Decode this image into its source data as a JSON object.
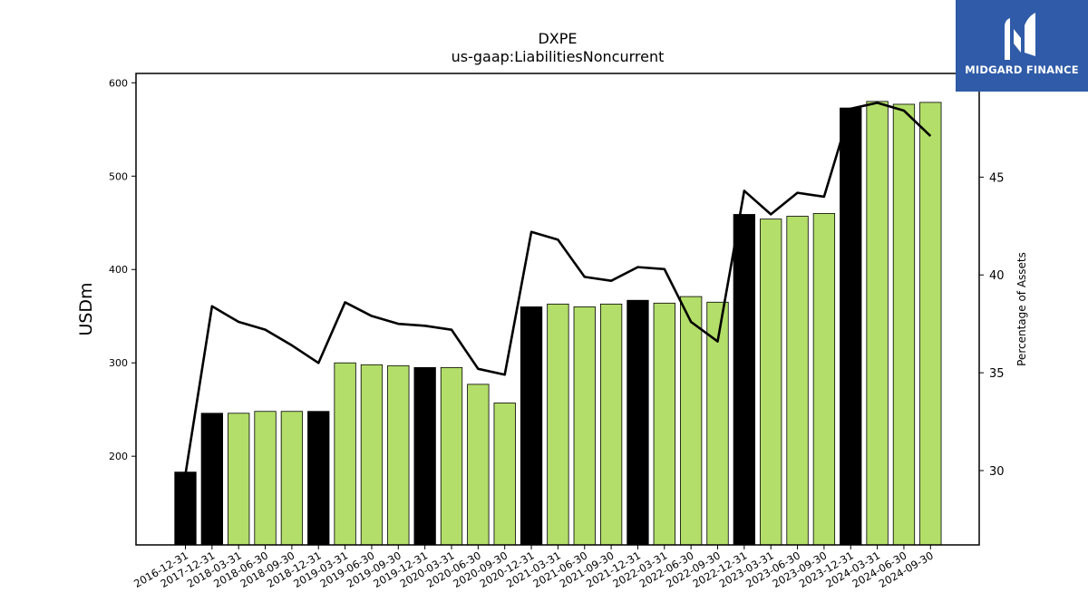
{
  "title": "DXPE",
  "subtitle": "us-gaap:LiabilitiesNoncurrent",
  "logo": {
    "text": "MIDGARD FINANCE",
    "color": "#2f5ba8"
  },
  "chart_data": {
    "type": "bar",
    "ylabel": "USDm",
    "y2label": "Percentage of Assets",
    "ylim": [
      105,
      610
    ],
    "y2lim": [
      26.2,
      50.3
    ],
    "yticks": [
      200,
      300,
      400,
      500,
      600
    ],
    "y2ticks": [
      30,
      35,
      40,
      45
    ],
    "grid": false,
    "categories": [
      "2016-12-31",
      "2017-12-31",
      "2018-03-31",
      "2018-06-30",
      "2018-09-30",
      "2018-12-31",
      "2019-03-31",
      "2019-06-30",
      "2019-09-30",
      "2019-12-31",
      "2020-03-31",
      "2020-06-30",
      "2020-09-30",
      "2020-12-31",
      "2021-03-31",
      "2021-06-30",
      "2021-09-30",
      "2021-12-31",
      "2022-03-31",
      "2022-06-30",
      "2022-09-30",
      "2022-12-31",
      "2023-03-31",
      "2023-06-30",
      "2023-09-30",
      "2023-12-31",
      "2024-03-31",
      "2024-06-30",
      "2024-09-30"
    ],
    "series": [
      {
        "kind": "bar",
        "values": [
          183,
          246,
          246,
          248,
          248,
          248,
          300,
          298,
          297,
          295,
          295,
          277,
          257,
          360,
          363,
          360,
          363,
          367,
          364,
          371,
          365,
          459,
          454,
          457,
          460,
          573,
          580,
          577,
          579
        ],
        "annual": [
          true,
          true,
          false,
          false,
          false,
          true,
          false,
          false,
          false,
          true,
          false,
          false,
          false,
          true,
          false,
          false,
          false,
          true,
          false,
          false,
          false,
          true,
          false,
          false,
          false,
          true,
          false,
          false,
          false
        ],
        "annual_color": "#000000",
        "quarter_color": "#b3de69"
      },
      {
        "kind": "line",
        "axis": "right",
        "color": "#000000",
        "values": [
          29.8,
          38.4,
          37.6,
          37.2,
          36.4,
          35.5,
          38.6,
          37.9,
          37.5,
          37.4,
          37.2,
          35.2,
          34.9,
          42.2,
          41.8,
          39.9,
          39.7,
          40.4,
          40.3,
          37.6,
          36.6,
          44.3,
          43.1,
          44.2,
          44.0,
          48.5,
          48.8,
          48.4,
          47.1
        ]
      }
    ]
  }
}
